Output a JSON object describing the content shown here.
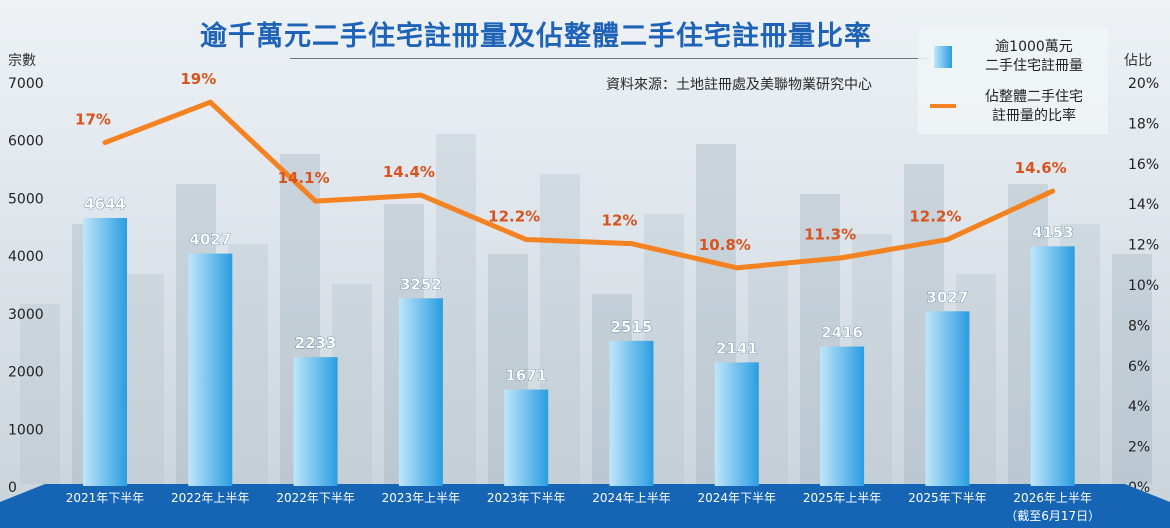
{
  "chart_data": {
    "type": "bar",
    "title": "逾千萬元二手住宅註冊量及佔整體二手住宅註冊量比率",
    "source": "資料來源：土地註冊處及美聯物業研究中心",
    "categories": [
      "2021年下半年",
      "2022年上半年",
      "2022年下半年",
      "2023年上半年",
      "2023年下半年",
      "2024年上半年",
      "2024年下半年",
      "2025年上半年",
      "2025年下半年",
      "2026年上半年"
    ],
    "category_note": "（截至6月17日）",
    "series": [
      {
        "name": "逾1000萬元\n二手住宅註冊量",
        "type": "bar",
        "axis": "left",
        "values": [
          4644,
          4027,
          2233,
          3252,
          1671,
          2515,
          2141,
          2416,
          3027,
          4153
        ]
      },
      {
        "name": "佔整體二手住宅\n註冊量的比率",
        "type": "line",
        "axis": "right",
        "values": [
          17,
          19,
          14.1,
          14.4,
          12.2,
          12,
          10.8,
          11.3,
          12.2,
          14.6
        ],
        "labels": [
          "17%",
          "19%",
          "14.1%",
          "14.4%",
          "12.2%",
          "12%",
          "10.8%",
          "11.3%",
          "12.2%",
          "14.6%"
        ]
      }
    ],
    "ylabel": "宗數",
    "ylim": [
      0,
      7000
    ],
    "y_ticks": [
      "0",
      "1000",
      "2000",
      "3000",
      "4000",
      "5000",
      "6000",
      "7000"
    ],
    "y2label": "佔比",
    "y2lim": [
      0,
      20
    ],
    "y2_ticks": [
      "0%",
      "2%",
      "4%",
      "6%",
      "8%",
      "10%",
      "12%",
      "14%",
      "16%",
      "18%",
      "20%"
    ],
    "grid": false,
    "legend_position": "top-right",
    "colors": {
      "bar_light": "#bfe6fb",
      "bar_dark": "#2a9de0",
      "line": "#f58220",
      "bar_label": "#ffffff",
      "line_label": "#d9531e",
      "footer": "#1565b4",
      "title": "#1f63b8"
    }
  }
}
